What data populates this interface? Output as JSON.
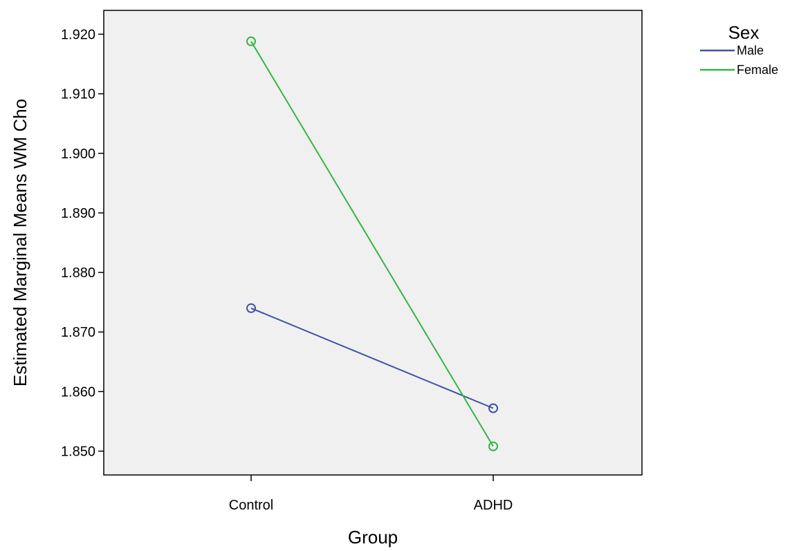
{
  "chart_data": {
    "type": "line",
    "xlabel": "Group",
    "ylabel": "Estimated Marginal Means WM Cho",
    "categories": [
      "Control",
      "ADHD"
    ],
    "ylim": [
      1.846,
      1.924
    ],
    "yticks": [
      "1.850",
      "1.860",
      "1.870",
      "1.880",
      "1.890",
      "1.900",
      "1.910",
      "1.920"
    ],
    "legend_title": "Sex",
    "legend_position": "top-right",
    "grid": false,
    "series": [
      {
        "name": "Male",
        "values": [
          1.874,
          1.8572
        ],
        "color": "#3f51a3"
      },
      {
        "name": "Female",
        "values": [
          1.9188,
          1.8508
        ],
        "color": "#33b544"
      }
    ],
    "plot_background": "#f0f0f0"
  }
}
